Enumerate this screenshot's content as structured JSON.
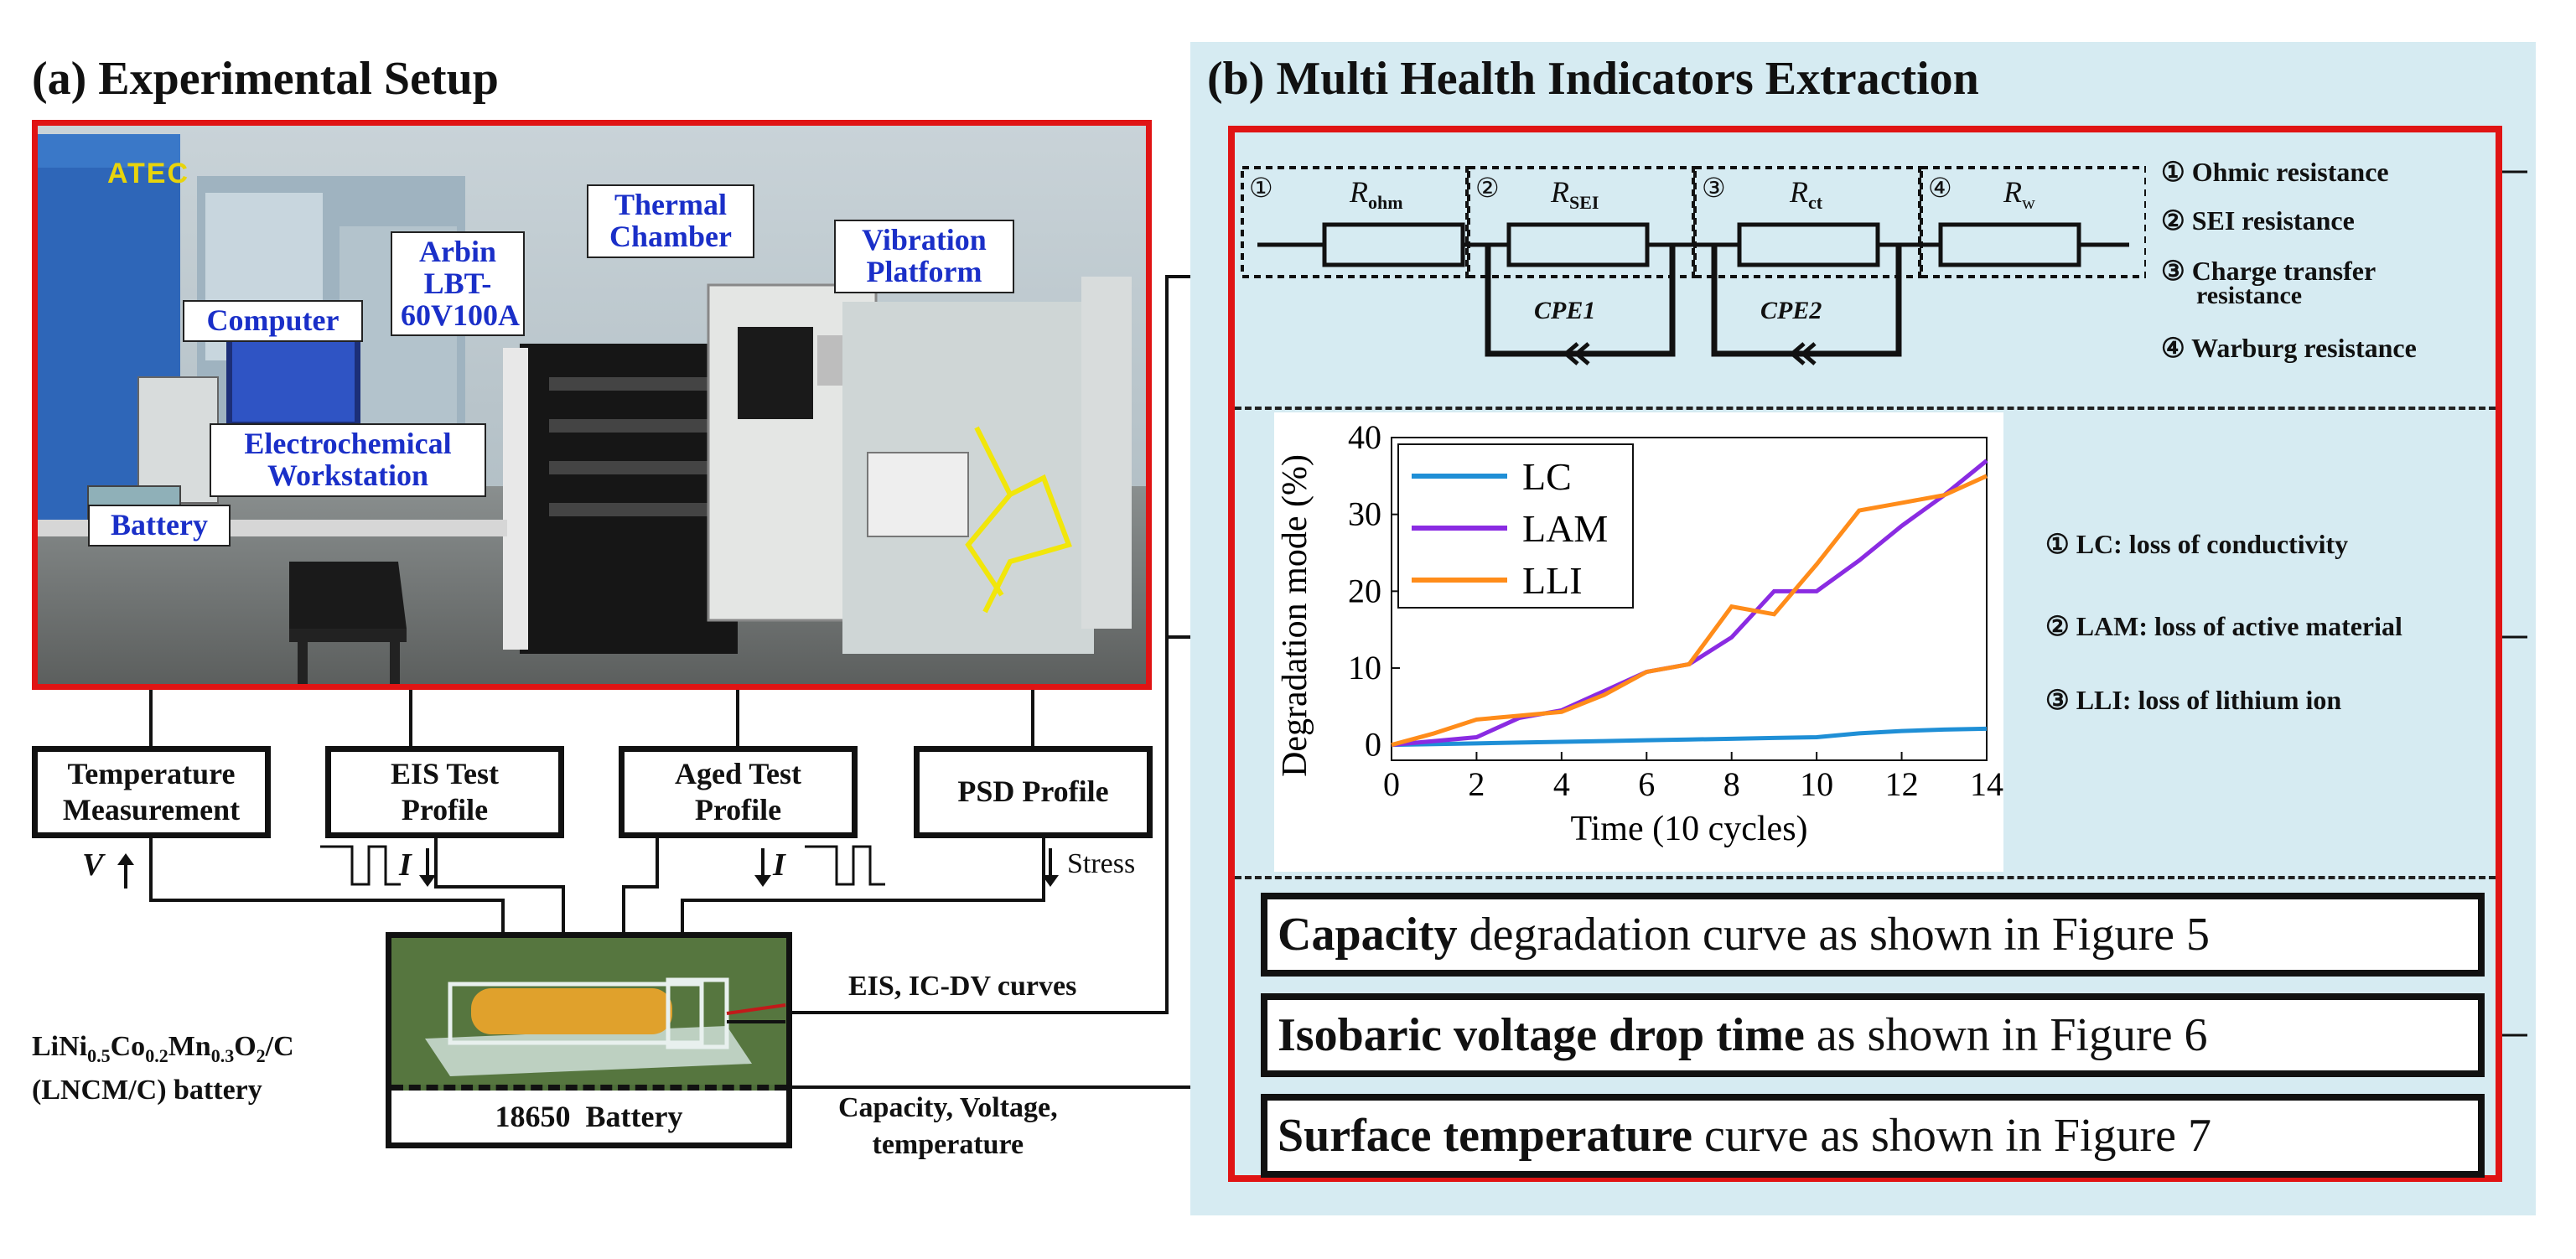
{
  "panel_a": {
    "title": "(a) Experimental Setup",
    "photo_labels": {
      "atec": "ATEC",
      "computer": "Computer",
      "arbin": [
        "Arbin",
        "LBT-",
        "60V100A"
      ],
      "thermal": [
        "Thermal",
        "Chamber"
      ],
      "vibration": [
        "Vibration",
        "Platform"
      ],
      "electrochem": [
        "Electrochemical",
        "Workstation"
      ],
      "battery": "Battery"
    },
    "boxes": {
      "temperature": [
        "Temperature",
        "Measurement"
      ],
      "eis": [
        "EIS Test",
        "Profile"
      ],
      "aged": [
        "Aged Test",
        "Profile"
      ],
      "psd": "PSD Profile"
    },
    "signals": {
      "v": "V",
      "i1": "I",
      "i2": "I",
      "stress": "Stress"
    },
    "battery_caption": "18650  Battery",
    "chemistry": {
      "formula": [
        "LiNi",
        "0.5",
        "Co",
        "0.2",
        "Mn",
        "0.3",
        "O",
        "2",
        "/C"
      ],
      "line2": "(LNCM/C) battery"
    },
    "eis_ic_dv": "EIS, IC-DV curves",
    "cap_volt_temp": [
      "Capacity, Voltage,",
      "temperature"
    ]
  },
  "panel_b": {
    "title": "(b) Multi Health Indicators Extraction",
    "circuit": {
      "numbers": [
        "①",
        "②",
        "③",
        "④"
      ],
      "resistors": [
        {
          "main": "R",
          "sub": "ohm"
        },
        {
          "main": "R",
          "sub": "SEI"
        },
        {
          "main": "R",
          "sub": "ct"
        },
        {
          "main": "R",
          "sub": "w"
        }
      ],
      "cpe": [
        "CPE1",
        "CPE2"
      ]
    },
    "circuit_legend": [
      "① Ohmic resistance",
      "② SEI resistance",
      "③ Charge transfer",
      "resistance",
      "④ Warburg resistance"
    ],
    "mode_legend": [
      "① LC: loss of conductivity",
      "② LAM: loss of active material",
      "③ LLI: loss of lithium ion"
    ],
    "indicators": [
      {
        "bold": "Capacity",
        "rest": " degradation curve as shown in Figure 5"
      },
      {
        "bold": "Isobaric voltage drop time",
        "rest": " as shown in Figure 6"
      },
      {
        "bold": "Surface temperature",
        "rest": " curve as shown in Figure 7"
      }
    ]
  },
  "chart_data": {
    "type": "line",
    "xlabel": "Time (10 cycles)",
    "ylabel": "Degradation mode (%)",
    "xlim": [
      0,
      14
    ],
    "ylim": [
      -2,
      40
    ],
    "xticks": [
      0,
      2,
      4,
      6,
      8,
      10,
      12,
      14
    ],
    "yticks": [
      0,
      10,
      20,
      30,
      40
    ],
    "legend_position": "top-left",
    "series": [
      {
        "name": "LC",
        "color": "#1f8fd6",
        "x": [
          0,
          1,
          2,
          3,
          4,
          5,
          6,
          7,
          8,
          9,
          10,
          11,
          12,
          13,
          14
        ],
        "y": [
          0,
          0.1,
          0.2,
          0.3,
          0.4,
          0.5,
          0.6,
          0.7,
          0.8,
          0.9,
          1.0,
          1.5,
          1.8,
          2.0,
          2.1
        ]
      },
      {
        "name": "LAM",
        "color": "#8a2be2",
        "x": [
          0,
          1,
          2,
          3,
          4,
          5,
          6,
          7,
          8,
          9,
          10,
          11,
          12,
          13,
          14
        ],
        "y": [
          0,
          0.5,
          1.0,
          3.5,
          4.5,
          7.0,
          9.5,
          10.5,
          14.0,
          20.0,
          20.0,
          24.0,
          28.5,
          32.5,
          37.0
        ]
      },
      {
        "name": "LLI",
        "color": "#ff8c1a",
        "x": [
          0,
          1,
          2,
          3,
          4,
          5,
          6,
          7,
          8,
          9,
          10,
          11,
          12,
          13,
          14
        ],
        "y": [
          0,
          1.5,
          3.3,
          3.8,
          4.3,
          6.5,
          9.5,
          10.5,
          18.0,
          17.0,
          23.5,
          30.5,
          31.5,
          32.5,
          35.0
        ]
      }
    ]
  }
}
